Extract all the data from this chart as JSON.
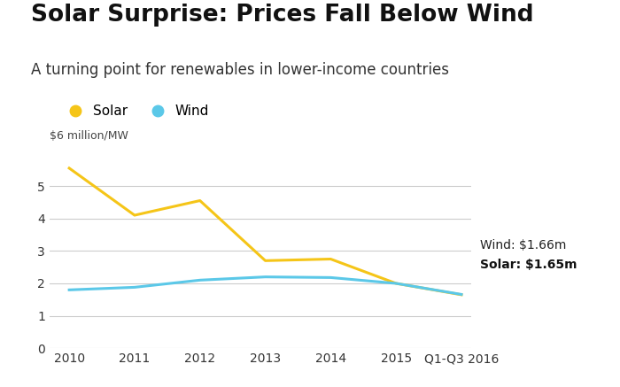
{
  "title": "Solar Surprise: Prices Fall Below Wind",
  "subtitle": "A turning point for renewables in lower-income countries",
  "ylabel": "$6 million/MW",
  "x_labels": [
    "2010",
    "2011",
    "2012",
    "2013",
    "2014",
    "2015",
    "Q1-Q3 2016"
  ],
  "solar_values": [
    5.55,
    4.1,
    4.55,
    2.7,
    2.75,
    2.0,
    1.65
  ],
  "wind_values": [
    1.8,
    1.88,
    2.1,
    2.2,
    2.18,
    2.0,
    1.66
  ],
  "solar_color": "#F5C518",
  "wind_color": "#5BC8E8",
  "annotation_wind": "Wind: $1.66m",
  "annotation_solar": "Solar: $1.65m",
  "ylim": [
    0,
    6.2
  ],
  "yticks": [
    0,
    1,
    2,
    3,
    4,
    5
  ],
  "background_color": "#ffffff",
  "grid_color": "#cccccc",
  "title_fontsize": 19,
  "subtitle_fontsize": 12,
  "legend_fontsize": 11,
  "tick_fontsize": 10,
  "annotation_fontsize": 10
}
